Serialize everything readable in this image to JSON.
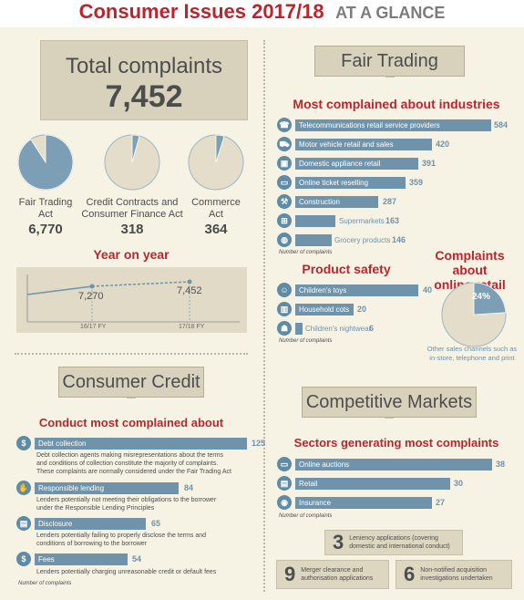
{
  "header": {
    "title": "Consumer Issues 2017/18",
    "subtitle": "AT A GLANCE"
  },
  "total": {
    "label": "Total complaints",
    "value": "7,452"
  },
  "acts": [
    {
      "name_line1": "Fair Trading",
      "name_line2": "Act",
      "value": "6,770",
      "share": 0.909
    },
    {
      "name_line1": "Credit Contracts and",
      "name_line2": "Consumer Finance Act",
      "value": "318",
      "share": 0.043
    },
    {
      "name_line1": "Commerce",
      "name_line2": "Act",
      "value": "364",
      "share": 0.049
    }
  ],
  "yoy": {
    "title": "Year on year",
    "values": [
      "7,270",
      "7,452"
    ],
    "periods": [
      "16/17 FY",
      "17/18 FY"
    ]
  },
  "consumer_credit": {
    "banner": "Consumer Credit",
    "heading": "Conduct most complained about",
    "note": "Number of complaints",
    "items": [
      {
        "label": "Debt collection",
        "value": "125",
        "icon": "$",
        "desc1": "Debt collection agents making misrepresentations about the terms",
        "desc2": "and conditions of collection constitute the majority of complaints.",
        "desc3": "These complaints are normally considered under the Fair Trading Act"
      },
      {
        "label": "Responsible lending",
        "value": "84",
        "icon": "✋",
        "desc1": "Lenders potentially not meeting their obligations to the borrower",
        "desc2": "under the Responsible Lending Principles",
        "desc3": ""
      },
      {
        "label": "Disclosure",
        "value": "65",
        "icon": "▤",
        "desc1": "Lenders potentially failing to properly disclose the terms and",
        "desc2": "conditions of borrowing to the borrower",
        "desc3": ""
      },
      {
        "label": "Fees",
        "value": "54",
        "icon": "$",
        "desc1": "Lenders potentially charging unreasonable credit or default fees",
        "desc2": "",
        "desc3": ""
      }
    ]
  },
  "fair_trading": {
    "banner": "Fair Trading",
    "heading": "Most complained about industries",
    "note": "Number of complaints",
    "industries": [
      {
        "label": "Telecommunications retail service providers",
        "value": "584",
        "icon": "☎"
      },
      {
        "label": "Motor vehicle retail and sales",
        "value": "420",
        "icon": "⛟"
      },
      {
        "label": "Domestic appliance retail",
        "value": "391",
        "icon": "▣"
      },
      {
        "label": "Online ticket reselling",
        "value": "359",
        "icon": "▭"
      },
      {
        "label": "Construction",
        "value": "287",
        "icon": "⚒"
      },
      {
        "label": "Supermarkets",
        "value": "163",
        "icon": "⊞"
      },
      {
        "label": "Grocery products",
        "value": "146",
        "icon": "◍"
      }
    ]
  },
  "product_safety": {
    "heading": "Product safety",
    "note": "Number of complaints",
    "items": [
      {
        "label": "Children's toys",
        "value": "40",
        "icon": "☺"
      },
      {
        "label": "Household cots",
        "value": "20",
        "icon": "▥"
      },
      {
        "label": "Children's nightwear",
        "value": "6",
        "icon": "☗"
      }
    ]
  },
  "online_retail": {
    "heading_line1": "Complaints about",
    "heading_line2": "online retail",
    "percent": "24%",
    "share": 0.24,
    "other_line1": "Other sales channels such as",
    "other_line2": "in-store, telephone and print"
  },
  "competitive_markets": {
    "banner": "Competitive Markets",
    "heading": "Sectors generating most complaints",
    "note": "Number of complaints",
    "sectors": [
      {
        "label": "Online auctions",
        "value": "38",
        "icon": "🖥"
      },
      {
        "label": "Retail",
        "value": "30",
        "icon": "▤"
      },
      {
        "label": "Insurance",
        "value": "27",
        "icon": "◉"
      }
    ],
    "stats": [
      {
        "num": "3",
        "line1": "Leniency applications (covering",
        "line2": "domestic and international conduct)"
      },
      {
        "num": "9",
        "line1": "Merger clearance and",
        "line2": "authorisation applications"
      },
      {
        "num": "6",
        "line1": "Non-notified acquisition",
        "line2": "investigations undertaken"
      }
    ]
  },
  "colors": {
    "red": "#b8262e",
    "bar": "#6e93ab",
    "pie": "#7d9fb5",
    "beige": "#d8d2bc"
  }
}
